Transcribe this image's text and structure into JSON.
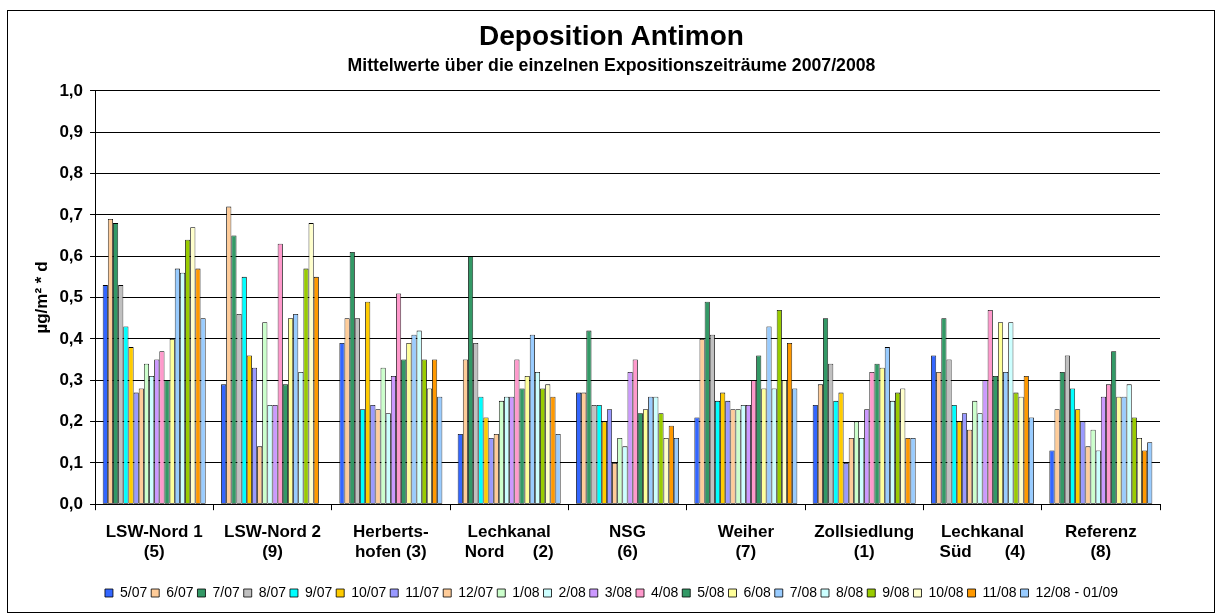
{
  "chart_data": {
    "type": "bar",
    "title": "Deposition Antimon",
    "subtitle": "Mittelwerte über die einzelnen Expositionszeiträume 2007/2008",
    "ylabel": "µg/m² * d",
    "categories": [
      "LSW-Nord 1\n(5)",
      "LSW-Nord 2\n(9)",
      "Herberts-\nhofen (3)",
      "Lechkanal\nNord      (2)",
      "NSG\n(6)",
      "Weiher\n(7)",
      "Zollsiedlung\n(1)",
      "Lechkanal\nSüd       (4)",
      "Referenz\n(8)"
    ],
    "series": [
      {
        "name": "5/07",
        "color": "#3366ff",
        "values": [
          0.53,
          0.29,
          0.39,
          0.17,
          0.27,
          0.21,
          0.24,
          0.36,
          0.13
        ]
      },
      {
        "name": "6/07",
        "color": "#ffcc99",
        "values": [
          0.69,
          0.72,
          0.45,
          0.35,
          0.27,
          0.4,
          0.29,
          0.32,
          0.23
        ]
      },
      {
        "name": "7/07",
        "color": "#339966",
        "values": [
          0.68,
          0.65,
          0.61,
          0.6,
          0.42,
          0.49,
          0.45,
          0.45,
          0.32
        ]
      },
      {
        "name": "8/07",
        "color": "#c0c0c0",
        "values": [
          0.53,
          0.46,
          0.45,
          0.39,
          0.24,
          0.41,
          0.34,
          0.35,
          0.36
        ]
      },
      {
        "name": "9/07",
        "color": "#00ffff",
        "values": [
          0.43,
          0.55,
          0.23,
          0.26,
          0.24,
          0.25,
          0.25,
          0.24,
          0.28
        ]
      },
      {
        "name": "10/07",
        "color": "#ffcc00",
        "values": [
          0.38,
          0.36,
          0.49,
          0.21,
          0.2,
          0.27,
          0.27,
          0.2,
          0.23
        ]
      },
      {
        "name": "11/07",
        "color": "#9999ff",
        "values": [
          0.27,
          0.33,
          0.24,
          0.16,
          0.23,
          0.25,
          0.1,
          0.22,
          0.2
        ]
      },
      {
        "name": "12/07",
        "color": "#ffcc99",
        "values": [
          0.28,
          0.14,
          0.23,
          0.17,
          0.1,
          0.23,
          0.16,
          0.18,
          0.14
        ]
      },
      {
        "name": "1/08",
        "color": "#ccffcc",
        "values": [
          0.34,
          0.44,
          0.33,
          0.25,
          0.16,
          0.23,
          0.2,
          0.25,
          0.18
        ]
      },
      {
        "name": "2/08",
        "color": "#ccffff",
        "values": [
          0.31,
          0.24,
          0.22,
          0.26,
          0.14,
          0.24,
          0.16,
          0.22,
          0.13
        ]
      },
      {
        "name": "3/08",
        "color": "#cc99ff",
        "values": [
          0.35,
          0.24,
          0.31,
          0.26,
          0.32,
          0.24,
          0.23,
          0.3,
          0.26
        ]
      },
      {
        "name": "4/08",
        "color": "#ff99cc",
        "values": [
          0.37,
          0.63,
          0.51,
          0.35,
          0.35,
          0.3,
          0.32,
          0.47,
          0.29
        ]
      },
      {
        "name": "5/08",
        "color": "#339966",
        "values": [
          0.3,
          0.29,
          0.35,
          0.28,
          0.22,
          0.36,
          0.34,
          0.31,
          0.37
        ]
      },
      {
        "name": "6/08",
        "color": "#ffff99",
        "values": [
          0.4,
          0.45,
          0.39,
          0.31,
          0.23,
          0.28,
          0.33,
          0.44,
          0.26
        ]
      },
      {
        "name": "7/08",
        "color": "#99ccff",
        "values": [
          0.57,
          0.46,
          0.41,
          0.41,
          0.26,
          0.43,
          0.38,
          0.32,
          0.26
        ]
      },
      {
        "name": "8/08",
        "color": "#ccffff",
        "values": [
          0.56,
          0.32,
          0.42,
          0.32,
          0.26,
          0.28,
          0.25,
          0.44,
          0.29
        ]
      },
      {
        "name": "9/08",
        "color": "#99cc00",
        "values": [
          0.64,
          0.57,
          0.35,
          0.28,
          0.22,
          0.47,
          0.27,
          0.27,
          0.21
        ]
      },
      {
        "name": "10/08",
        "color": "#ffffcc",
        "values": [
          0.67,
          0.68,
          0.28,
          0.29,
          0.16,
          0.3,
          0.28,
          0.26,
          0.16
        ]
      },
      {
        "name": "11/08",
        "color": "#ff9900",
        "values": [
          0.57,
          0.55,
          0.35,
          0.26,
          0.19,
          0.39,
          0.16,
          0.31,
          0.13
        ]
      },
      {
        "name": "12/08 - 01/09",
        "color": "#99ccff",
        "values": [
          0.45,
          null,
          0.26,
          0.17,
          0.16,
          0.28,
          0.16,
          0.21,
          0.15
        ]
      }
    ],
    "ylim": [
      0,
      1
    ],
    "yticks": [
      {
        "value": 0,
        "label": "0,0"
      },
      {
        "value": 0.1,
        "label": "0,1"
      },
      {
        "value": 0.2,
        "label": "0,2"
      },
      {
        "value": 0.3,
        "label": "0,3"
      },
      {
        "value": 0.4,
        "label": "0,4"
      },
      {
        "value": 0.5,
        "label": "0,5"
      },
      {
        "value": 0.6,
        "label": "0,6"
      },
      {
        "value": 0.7,
        "label": "0,7"
      },
      {
        "value": 0.8,
        "label": "0,8"
      },
      {
        "value": 0.9,
        "label": "0,9"
      },
      {
        "value": 1,
        "label": "1,0"
      }
    ],
    "grid": "y",
    "legend": "bottom"
  }
}
